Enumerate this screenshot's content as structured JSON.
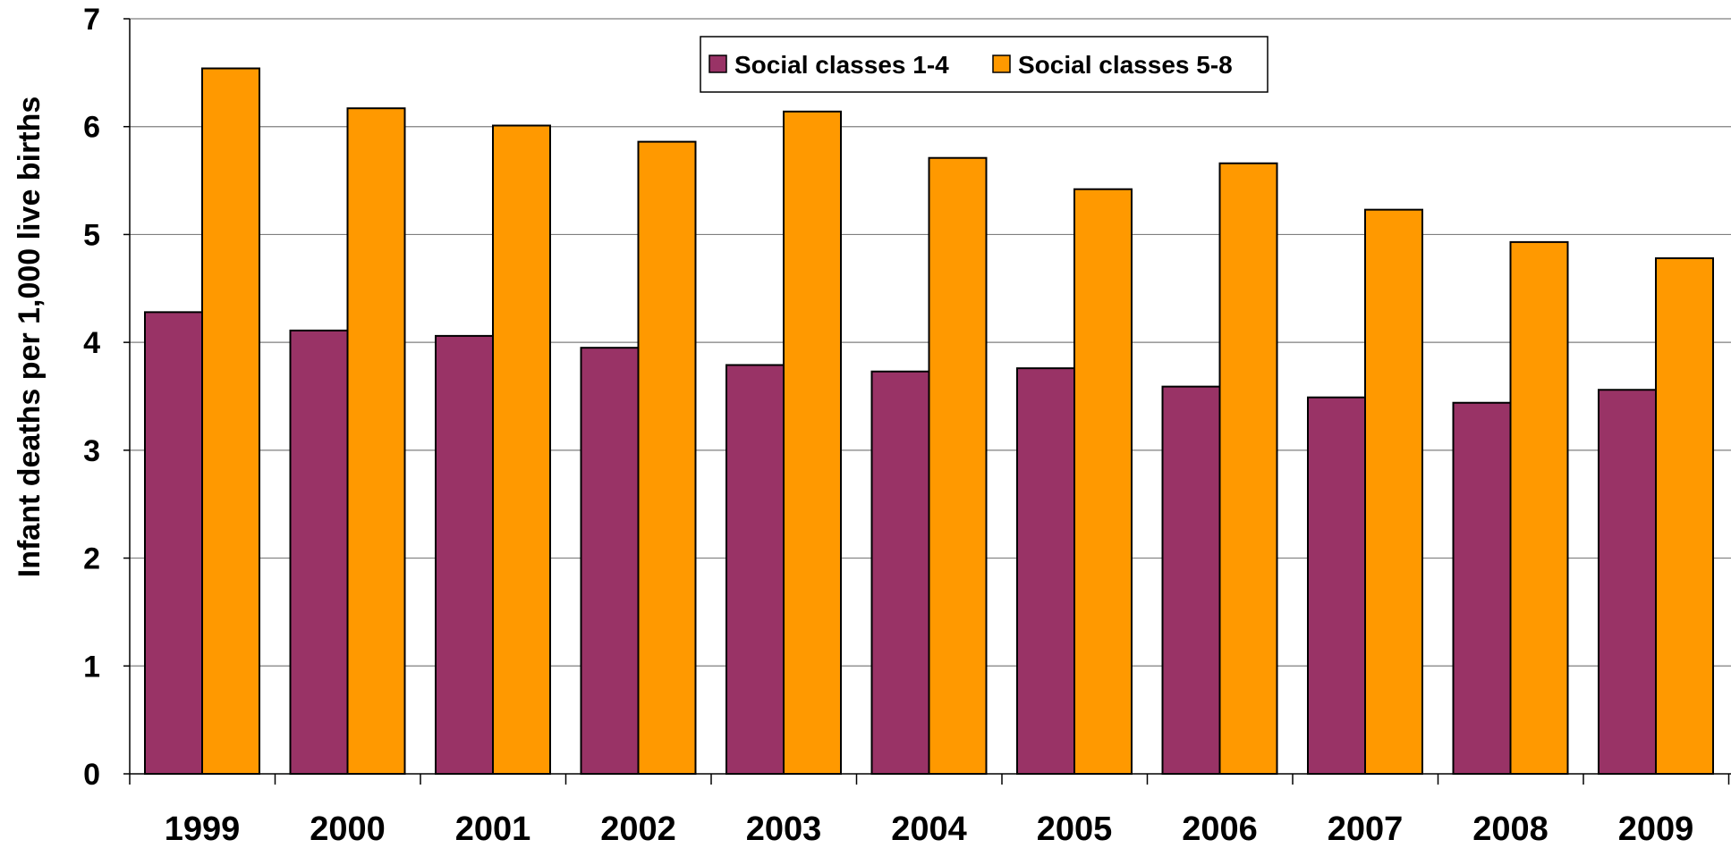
{
  "chart_data": {
    "type": "bar",
    "title": "",
    "xlabel": "",
    "ylabel": "Infant deaths per 1,000 live births",
    "ylim": [
      0,
      7
    ],
    "yticks": [
      0,
      1,
      2,
      3,
      4,
      5,
      6,
      7
    ],
    "grid": true,
    "legend_position": "top",
    "categories": [
      "1999",
      "2000",
      "2001",
      "2002",
      "2003",
      "2004",
      "2005",
      "2006",
      "2007",
      "2008",
      "2009"
    ],
    "series": [
      {
        "name": "Social classes 1-4",
        "color": "#993366",
        "values": [
          4.28,
          4.11,
          4.06,
          3.95,
          3.79,
          3.73,
          3.76,
          3.59,
          3.49,
          3.44,
          3.56
        ]
      },
      {
        "name": "Social classes 5-8",
        "color": "#FF9900",
        "values": [
          6.54,
          6.17,
          6.01,
          5.86,
          6.14,
          5.71,
          5.42,
          5.66,
          5.23,
          4.93,
          4.78
        ]
      }
    ]
  }
}
